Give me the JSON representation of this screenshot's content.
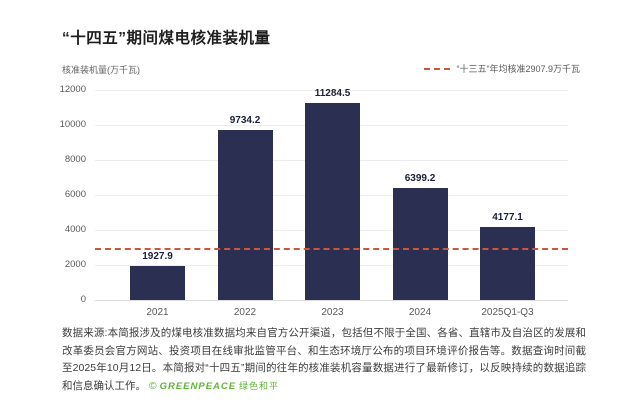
{
  "header": {
    "title": "“十四五”期间煤电核准装机量"
  },
  "chart_data": {
    "type": "bar",
    "title": "“十四五”期间煤电核准装机量",
    "ylabel": "核准装机量(万千瓦)",
    "xlabel": "",
    "categories": [
      "2021",
      "2022",
      "2023",
      "2024",
      "2025Q1-Q3"
    ],
    "values": [
      1927.9,
      9734.2,
      11284.5,
      6399.2,
      4177.1
    ],
    "value_labels": [
      "1927.9",
      "9734.2",
      "11284.5",
      "6399.2",
      "4177.1"
    ],
    "ylim": [
      0,
      12000
    ],
    "yticks": [
      0,
      2000,
      4000,
      6000,
      8000,
      10000,
      12000
    ],
    "grid": true,
    "bar_color": "#2b3052",
    "legend_position": "top-right",
    "reference_line": {
      "value": 2907.9,
      "label": "“十三五”年均核准2907.9万千瓦",
      "style": "dashed",
      "color": "#c9573c"
    }
  },
  "footer": {
    "source_text": "数据来源:本简报涉及的煤电核准数据均来自官方公开渠道，包括但不限于全国、各省、直辖市及自治区的发展和改革委员会官方网站、投资项目在线审批监管平台、和生态环境厅公布的项目环境评价报告等。数据查询时间截至2025年10月12日。本简报对“十四五”期间的往年的核准装机容量数据进行了最新修订，以反映持续的数据追踪和信息确认工作。",
    "copyright_symbol": "©",
    "org_en": "GREENPEACE",
    "org_cn": "绿色和平"
  },
  "colors": {
    "bar": "#2b3052",
    "reference_dash": "#c9573c",
    "org_green": "#5fb336",
    "background": "#ffffff"
  }
}
